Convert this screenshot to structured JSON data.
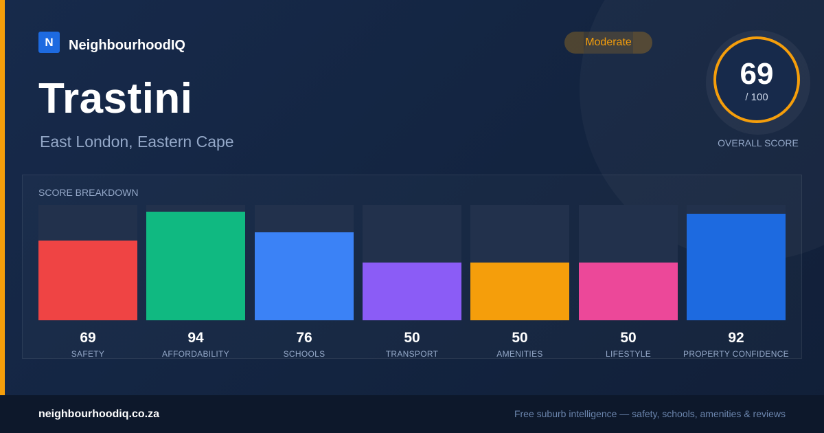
{
  "brand": {
    "logo_letter": "N",
    "name": "NeighbourhoodIQ",
    "logo_color": "#1d6ae0"
  },
  "suburb": {
    "name": "Trastini",
    "location": "East London, Eastern Cape"
  },
  "badge": {
    "label": "Moderate",
    "color": "#f59e0b"
  },
  "overall": {
    "score": "69",
    "max_label": "/ 100",
    "label": "OVERALL SCORE",
    "ring_color": "#f59e0b"
  },
  "breakdown": {
    "title": "SCORE BREAKDOWN",
    "max": 100,
    "items": [
      {
        "label": "SAFETY",
        "value": 69,
        "color": "#ef4444"
      },
      {
        "label": "AFFORDABILITY",
        "value": 94,
        "color": "#10b981"
      },
      {
        "label": "SCHOOLS",
        "value": 76,
        "color": "#3b82f6"
      },
      {
        "label": "TRANSPORT",
        "value": 50,
        "color": "#8b5cf6"
      },
      {
        "label": "AMENITIES",
        "value": 50,
        "color": "#f59e0b"
      },
      {
        "label": "LIFESTYLE",
        "value": 50,
        "color": "#ec4899"
      },
      {
        "label": "PROPERTY CONFIDENCE",
        "value": 92,
        "color": "#1d6ae0"
      }
    ]
  },
  "footer": {
    "url": "neighbourhoodiq.co.za",
    "tagline": "Free suburb intelligence — safety, schools, amenities & reviews"
  }
}
